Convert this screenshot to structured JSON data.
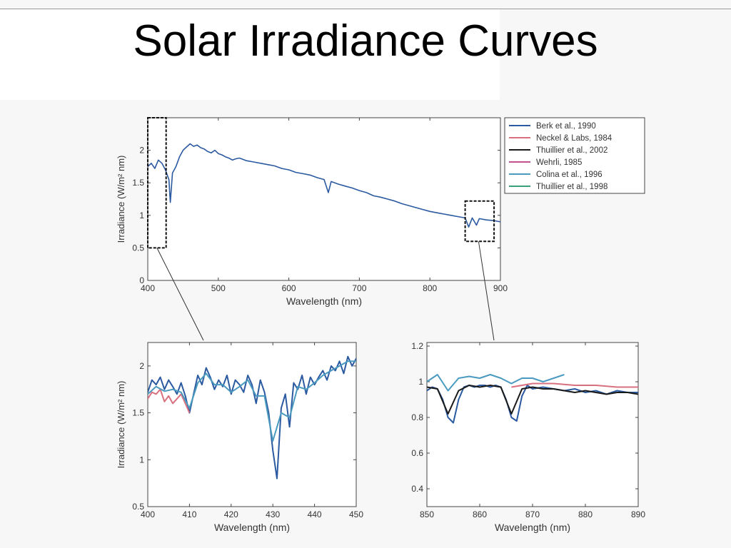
{
  "slide": {
    "title": "Solar Irradiance Curves"
  },
  "colors": {
    "series": [
      "#2b5aa0",
      "#d9707f",
      "#1a1a1a",
      "#c05090",
      "#4a9ac0",
      "#3aa07a"
    ],
    "box": "#111111",
    "connector": "#333333",
    "axis": "#444444"
  },
  "chart_data": [
    {
      "type": "line",
      "title": "",
      "xlabel": "Wavelength (nm)",
      "ylabel": "Irradiance (W/m² nm)",
      "xlim": [
        400,
        900
      ],
      "ylim": [
        0,
        2.5
      ],
      "xticks": [
        "400",
        "500",
        "600",
        "700",
        "800",
        "900"
      ],
      "yticks": [
        "0",
        "0.5",
        "1",
        "1.5",
        "2"
      ],
      "legend_position": "top-right",
      "legend": [
        "Berk et al., 1990",
        "Neckel & Labs, 1984",
        "Thuillier et al., 2002",
        "Wehrli, 1985",
        "Colina et al., 1996",
        "Thuillier et al., 1998"
      ],
      "series": [
        {
          "name": "Berk et al., 1990",
          "x": [
            400,
            405,
            410,
            415,
            420,
            425,
            430,
            432,
            435,
            440,
            445,
            450,
            455,
            460,
            465,
            470,
            475,
            480,
            485,
            490,
            495,
            500,
            505,
            510,
            515,
            520,
            525,
            530,
            540,
            550,
            560,
            570,
            580,
            590,
            600,
            610,
            620,
            630,
            640,
            650,
            656,
            660,
            670,
            680,
            690,
            700,
            710,
            720,
            730,
            740,
            750,
            760,
            770,
            780,
            790,
            800,
            810,
            820,
            830,
            840,
            850,
            855,
            860,
            866,
            870,
            880,
            890,
            900
          ],
          "y": [
            1.75,
            1.8,
            1.72,
            1.85,
            1.8,
            1.7,
            1.55,
            1.2,
            1.65,
            1.75,
            1.9,
            2.0,
            2.05,
            2.1,
            2.06,
            2.08,
            2.04,
            2.02,
            1.98,
            1.96,
            2.0,
            1.95,
            1.93,
            1.9,
            1.88,
            1.85,
            1.87,
            1.88,
            1.84,
            1.82,
            1.8,
            1.78,
            1.76,
            1.72,
            1.7,
            1.66,
            1.64,
            1.62,
            1.58,
            1.55,
            1.35,
            1.52,
            1.48,
            1.45,
            1.42,
            1.38,
            1.35,
            1.3,
            1.28,
            1.25,
            1.22,
            1.18,
            1.15,
            1.12,
            1.09,
            1.06,
            1.04,
            1.02,
            1.0,
            0.98,
            0.96,
            0.82,
            0.96,
            0.85,
            0.95,
            0.93,
            0.92,
            0.9
          ]
        }
      ]
    },
    {
      "type": "line",
      "title": "",
      "xlabel": "Wavelength (nm)",
      "ylabel": "Irradiance (W/m² nm)",
      "xlim": [
        400,
        450
      ],
      "ylim": [
        0.5,
        2.25
      ],
      "xticks": [
        "400",
        "410",
        "420",
        "430",
        "440",
        "450"
      ],
      "yticks": [
        "0.5",
        "1",
        "1.5",
        "2"
      ],
      "series": [
        {
          "name": "Berk et al., 1990",
          "x": [
            400,
            401,
            402,
            403,
            404,
            405,
            406,
            407,
            408,
            409,
            410,
            411,
            412,
            413,
            414,
            415,
            416,
            417,
            418,
            419,
            420,
            421,
            422,
            423,
            424,
            425,
            426,
            427,
            428,
            429,
            430,
            431,
            432,
            433,
            434,
            435,
            436,
            437,
            438,
            439,
            440,
            441,
            442,
            443,
            444,
            445,
            446,
            447,
            448,
            449,
            450
          ],
          "y": [
            1.72,
            1.85,
            1.8,
            1.88,
            1.75,
            1.85,
            1.78,
            1.7,
            1.82,
            1.68,
            1.5,
            1.7,
            1.9,
            1.8,
            1.98,
            1.88,
            1.75,
            1.85,
            1.78,
            1.9,
            1.7,
            1.85,
            1.8,
            1.72,
            1.9,
            1.8,
            1.6,
            1.85,
            1.72,
            1.5,
            1.1,
            0.8,
            1.55,
            1.7,
            1.35,
            1.82,
            1.75,
            1.9,
            1.7,
            1.88,
            1.8,
            1.88,
            1.95,
            1.85,
            2.0,
            1.95,
            2.05,
            1.92,
            2.1,
            2.0,
            2.08
          ]
        },
        {
          "name": "Neckel & Labs, 1984",
          "x": [
            400,
            401,
            402,
            403,
            404,
            405,
            406,
            407,
            408,
            409,
            410
          ],
          "y": [
            1.65,
            1.72,
            1.7,
            1.75,
            1.62,
            1.68,
            1.6,
            1.65,
            1.7,
            1.6,
            1.5
          ]
        },
        {
          "name": "Colina et al., 1996",
          "x": [
            400,
            402,
            404,
            406,
            408,
            410,
            412,
            414,
            416,
            418,
            420,
            422,
            424,
            426,
            428,
            430,
            432,
            434,
            436,
            438,
            440,
            442,
            444,
            446,
            448,
            450
          ],
          "y": [
            1.7,
            1.78,
            1.73,
            1.75,
            1.72,
            1.55,
            1.82,
            1.92,
            1.8,
            1.8,
            1.72,
            1.78,
            1.85,
            1.68,
            1.68,
            1.2,
            1.5,
            1.45,
            1.78,
            1.75,
            1.82,
            1.9,
            1.95,
            2.0,
            2.05,
            2.05
          ]
        }
      ]
    },
    {
      "type": "line",
      "title": "",
      "xlabel": "Wavelength (nm)",
      "ylabel": "",
      "xlim": [
        850,
        890
      ],
      "ylim": [
        0.3,
        1.22
      ],
      "xticks": [
        "850",
        "860",
        "870",
        "880",
        "890"
      ],
      "yticks": [
        "0.4",
        "0.6",
        "0.8",
        "1",
        "1.2"
      ],
      "series": [
        {
          "name": "Berk et al., 1990",
          "x": [
            850,
            851,
            852,
            853,
            854,
            855,
            856,
            857,
            858,
            859,
            860,
            861,
            862,
            863,
            864,
            865,
            866,
            867,
            868,
            869,
            870,
            872,
            874,
            876,
            878,
            880,
            882,
            884,
            886,
            888,
            890
          ],
          "y": [
            0.95,
            0.97,
            0.96,
            0.9,
            0.8,
            0.77,
            0.9,
            0.97,
            0.98,
            0.97,
            0.98,
            0.98,
            0.97,
            0.98,
            0.97,
            0.9,
            0.8,
            0.78,
            0.92,
            0.98,
            0.96,
            0.97,
            0.96,
            0.95,
            0.96,
            0.94,
            0.95,
            0.93,
            0.95,
            0.94,
            0.94
          ]
        },
        {
          "name": "Neckel & Labs, 1984",
          "x": [
            866,
            870,
            874,
            878,
            882,
            886,
            890
          ],
          "y": [
            0.97,
            0.99,
            0.99,
            0.98,
            0.98,
            0.97,
            0.97
          ]
        },
        {
          "name": "Colina et al., 1996",
          "x": [
            850,
            852,
            854,
            856,
            858,
            860,
            862,
            864,
            866,
            868,
            870,
            872,
            874,
            876
          ],
          "y": [
            1.0,
            1.04,
            0.95,
            1.02,
            1.03,
            1.02,
            1.04,
            1.02,
            0.99,
            1.02,
            1.02,
            1.0,
            1.02,
            1.04
          ]
        },
        {
          "name": "Thuillier et al., 2002",
          "x": [
            850,
            852,
            854,
            856,
            858,
            860,
            862,
            864,
            866,
            868,
            870,
            872,
            874,
            876,
            878,
            880,
            882,
            884,
            886,
            888,
            890
          ],
          "y": [
            0.97,
            0.96,
            0.82,
            0.95,
            0.98,
            0.97,
            0.98,
            0.97,
            0.82,
            0.96,
            0.97,
            0.96,
            0.96,
            0.95,
            0.94,
            0.95,
            0.94,
            0.93,
            0.94,
            0.94,
            0.93
          ]
        }
      ]
    }
  ]
}
